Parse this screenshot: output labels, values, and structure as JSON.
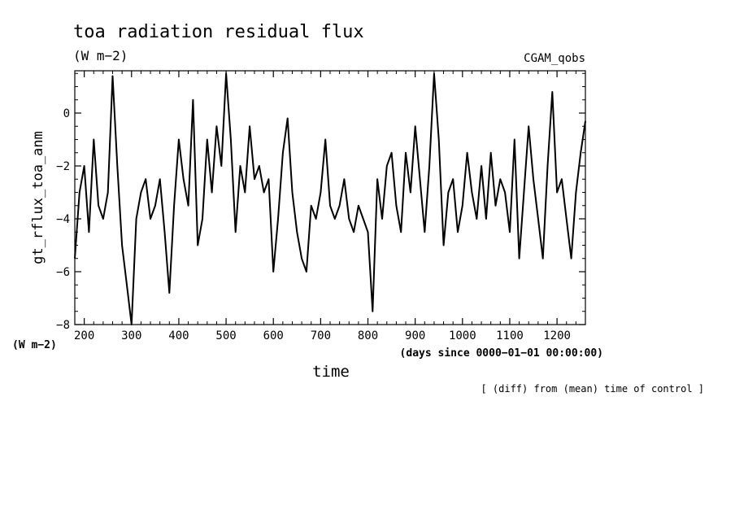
{
  "header": {
    "title": "toa radiation residual flux",
    "units": "(W m−2)",
    "run_name": "CGAM_qobs"
  },
  "axes": {
    "ylabel": "gt_rflux_toa_anm",
    "yunits": "(W m−2)",
    "xlabel": "time",
    "xunits": "(days since 0000−01−01 00:00:00)",
    "x_ticks": [
      "200",
      "300",
      "400",
      "500",
      "600",
      "700",
      "800",
      "900",
      "1000",
      "1100",
      "1200"
    ],
    "y_ticks": [
      "−8",
      "−6",
      "−4",
      "−2",
      "0"
    ]
  },
  "note": "[ (diff) from (mean) time of control ]",
  "chart_data": {
    "type": "line",
    "title": "toa radiation residual flux",
    "xlabel": "time",
    "ylabel": "gt_rflux_toa_anm",
    "xlim": [
      180,
      1260
    ],
    "ylim": [
      -8,
      1.6
    ],
    "x_ticks": [
      200,
      300,
      400,
      500,
      600,
      700,
      800,
      900,
      1000,
      1100,
      1200
    ],
    "y_ticks": [
      -8,
      -6,
      -4,
      -2,
      0
    ],
    "grid": false,
    "legend": "none",
    "x": [
      180,
      190,
      200,
      210,
      220,
      230,
      240,
      250,
      260,
      270,
      280,
      290,
      300,
      310,
      320,
      330,
      340,
      350,
      360,
      370,
      380,
      390,
      400,
      410,
      420,
      430,
      440,
      450,
      460,
      470,
      480,
      490,
      500,
      510,
      520,
      530,
      540,
      550,
      560,
      570,
      580,
      590,
      600,
      610,
      620,
      630,
      640,
      650,
      660,
      670,
      680,
      690,
      700,
      710,
      720,
      730,
      740,
      750,
      760,
      770,
      780,
      790,
      800,
      810,
      820,
      830,
      840,
      850,
      860,
      870,
      880,
      890,
      900,
      910,
      920,
      930,
      940,
      950,
      960,
      970,
      980,
      990,
      1000,
      1010,
      1020,
      1030,
      1040,
      1050,
      1060,
      1070,
      1080,
      1090,
      1100,
      1110,
      1120,
      1130,
      1140,
      1150,
      1160,
      1170,
      1180,
      1190,
      1200,
      1210,
      1220,
      1230,
      1240,
      1250,
      1260
    ],
    "values": [
      -5.5,
      -3,
      -2,
      -4.5,
      -1,
      -3.5,
      -4,
      -3,
      1.4,
      -2,
      -5,
      -6.5,
      -8,
      -4,
      -3,
      -2.5,
      -4,
      -3.5,
      -2.5,
      -4.5,
      -6.8,
      -3.5,
      -1,
      -2.5,
      -3.5,
      0.5,
      -5,
      -4,
      -1,
      -3,
      -0.5,
      -2,
      1.5,
      -1,
      -4.5,
      -2,
      -3,
      -0.5,
      -2.5,
      -2,
      -3,
      -2.5,
      -6,
      -4,
      -1.5,
      -0.2,
      -3,
      -4.5,
      -5.5,
      -6,
      -3.5,
      -4,
      -3,
      -1,
      -3.5,
      -4,
      -3.5,
      -2.5,
      -4,
      -4.5,
      -3.5,
      -4,
      -4.5,
      -7.5,
      -2.5,
      -4,
      -2,
      -1.5,
      -3.5,
      -4.5,
      -1.5,
      -3,
      -0.5,
      -2.5,
      -4.5,
      -2,
      1.5,
      -1,
      -5,
      -3,
      -2.5,
      -4.5,
      -3.5,
      -1.5,
      -3,
      -4,
      -2,
      -4,
      -1.5,
      -3.5,
      -2.5,
      -3,
      -4.5,
      -1,
      -5.5,
      -3,
      -0.5,
      -2.5,
      -4,
      -5.5,
      -2,
      0.8,
      -3,
      -2.5,
      -4,
      -5.5,
      -3,
      -1.5,
      -0.3
    ]
  }
}
